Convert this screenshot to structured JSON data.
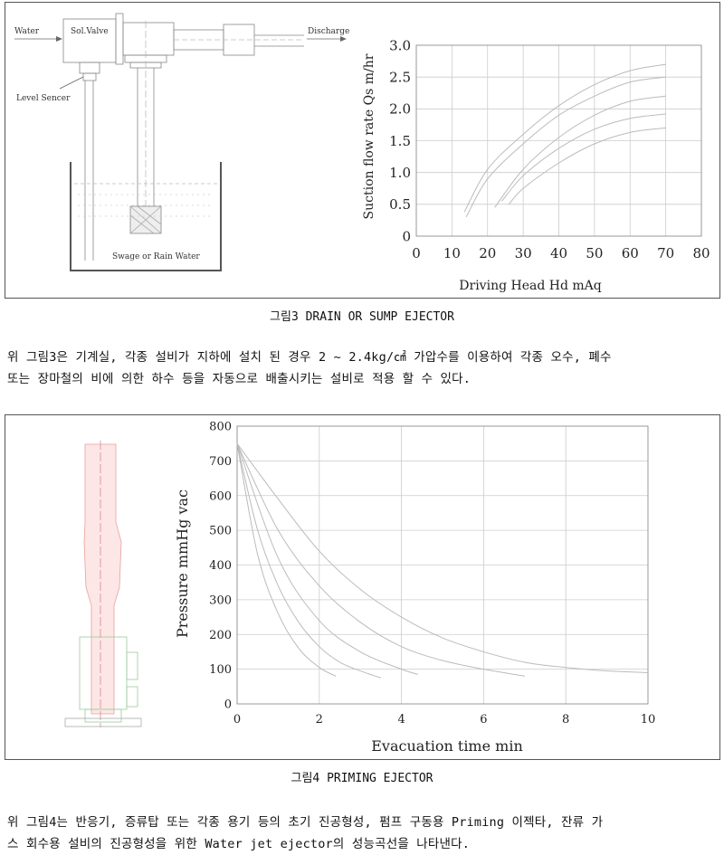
{
  "figure3": {
    "caption": "그림3 DRAIN OR SUMP EJECTOR",
    "diagram": {
      "water": "Water",
      "valve": "Sol.Valve",
      "discharge": "Discharge",
      "level_sensor": "Level Sencer",
      "tank": "Swage or Rain Water"
    },
    "chart_data": {
      "type": "line",
      "xlabel": "Driving Head Hd mAq",
      "ylabel": "Suction flow rate Qs m/hr",
      "xlim": [
        0,
        80
      ],
      "ylim": [
        0,
        3.0
      ],
      "xticks": [
        "0",
        "10",
        "20",
        "30",
        "40",
        "50",
        "60",
        "70",
        "80"
      ],
      "yticks": [
        "0",
        "0.5",
        "1.0",
        "1.5",
        "2.0",
        "2.5",
        "3.0"
      ],
      "grid": true,
      "series": [
        {
          "x": [
            13.5,
            20,
            30,
            40,
            50,
            60,
            70
          ],
          "y": [
            0.38,
            1.05,
            1.6,
            2.05,
            2.38,
            2.6,
            2.7
          ]
        },
        {
          "x": [
            14,
            20,
            30,
            40,
            50,
            60,
            70
          ],
          "y": [
            0.3,
            0.9,
            1.45,
            1.9,
            2.2,
            2.42,
            2.5
          ]
        },
        {
          "x": [
            22,
            30,
            40,
            50,
            60,
            70
          ],
          "y": [
            0.45,
            1.05,
            1.55,
            1.9,
            2.12,
            2.2
          ]
        },
        {
          "x": [
            24,
            30,
            40,
            50,
            60,
            70
          ],
          "y": [
            0.55,
            0.95,
            1.38,
            1.68,
            1.85,
            1.92
          ]
        },
        {
          "x": [
            26,
            30,
            40,
            50,
            60,
            70
          ],
          "y": [
            0.5,
            0.75,
            1.15,
            1.45,
            1.63,
            1.7
          ]
        }
      ]
    }
  },
  "paragraph3": [
    "위 그림3은 기계실, 각종 설비가 지하에 설치 된 경우 2 ~ 2.4kg/㎠ 가압수를 이용하여 각종 오수, 폐수",
    "또는 장마철의 비에 의한 하수 등을 자동으로 배출시키는 설비로 적용 할 수 있다."
  ],
  "figure4": {
    "caption": "그림4 PRIMING EJECTOR",
    "chart_data": {
      "type": "line",
      "xlabel": "Evacuation time min",
      "ylabel": "Pressure mmHg vac",
      "xlim": [
        0,
        10
      ],
      "ylim": [
        0,
        800
      ],
      "xticks": [
        "0",
        "2",
        "4",
        "6",
        "8",
        "10"
      ],
      "yticks": [
        "0",
        "100",
        "200",
        "300",
        "400",
        "500",
        "600",
        "700",
        "800"
      ],
      "grid": true,
      "series": [
        {
          "x": [
            0,
            0.5,
            1,
            1.5,
            2,
            2.4
          ],
          "y": [
            750,
            430,
            260,
            160,
            105,
            80
          ]
        },
        {
          "x": [
            0,
            0.5,
            1,
            1.5,
            2,
            2.5,
            3,
            3.5
          ],
          "y": [
            750,
            500,
            340,
            235,
            165,
            120,
            95,
            75
          ]
        },
        {
          "x": [
            0,
            1,
            2,
            3,
            4,
            4.4
          ],
          "y": [
            750,
            420,
            240,
            150,
            100,
            85
          ]
        },
        {
          "x": [
            0,
            1,
            2,
            3,
            4,
            5,
            6,
            7
          ],
          "y": [
            750,
            500,
            340,
            235,
            165,
            125,
            100,
            80
          ]
        },
        {
          "x": [
            0,
            1,
            2,
            3,
            4,
            5,
            6,
            7,
            8,
            9,
            10
          ],
          "y": [
            750,
            590,
            440,
            330,
            250,
            190,
            150,
            120,
            105,
            95,
            90
          ]
        }
      ]
    }
  },
  "paragraph4": [
    "위 그림4는 반응기, 증류탑 또는 각종 용기 등의 초기 진공형성, 펌프 구동용 Priming 이젝타, 잔류 가",
    "스 회수용 설비의 진공형성을 위한 Water jet ejector의 성능곡선을 나타낸다."
  ]
}
